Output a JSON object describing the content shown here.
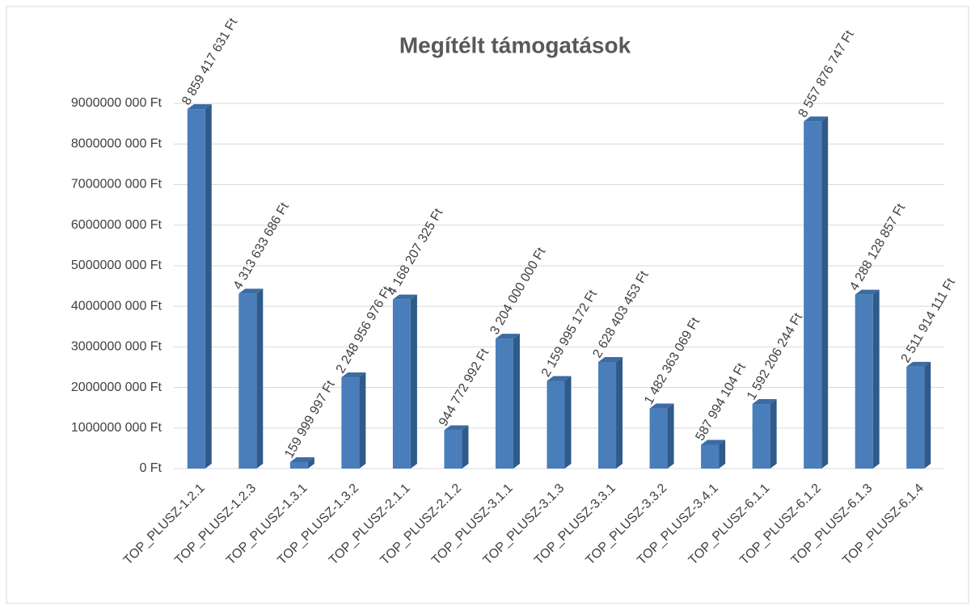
{
  "chart_data": {
    "type": "bar3d",
    "title": "Megítélt támogatások",
    "categories": [
      "TOP_PLUSZ-1.2.1",
      "TOP_PLUSZ-1.2.3",
      "TOP_PLUSZ-1.3.1",
      "TOP_PLUSZ-1.3.2",
      "TOP_PLUSZ-2.1.1",
      "TOP_PLUSZ-2.1.2",
      "TOP_PLUSZ-3.1.1",
      "TOP_PLUSZ-3.1.3",
      "TOP_PLUSZ-3.3.1",
      "TOP_PLUSZ-3.3.2",
      "TOP_PLUSZ-3.4.1",
      "TOP_PLUSZ-6.1.1",
      "TOP_PLUSZ-6.1.2",
      "TOP_PLUSZ-6.1.3",
      "TOP_PLUSZ-6.1.4"
    ],
    "values": [
      8859417631,
      4313633686,
      159999997,
      2248956976,
      4168207325,
      944772992,
      3204000000,
      2159995172,
      2628403453,
      1482363069,
      587994104,
      1592206244,
      8557876747,
      4288128857,
      2511914111
    ],
    "value_labels": [
      "8 859 417 631 Ft",
      "4 313 633 686 Ft",
      "159 999 997 Ft",
      "2 248 956 976 Ft",
      "4 168 207 325 Ft",
      "944 772 992 Ft",
      "3 204 000 000 Ft",
      "2 159 995 172 Ft",
      "2 628 403 453 Ft",
      "1 482 363 069 Ft",
      "587 994 104 Ft",
      "1 592 206 244 Ft",
      "8 557 876 747 Ft",
      "4 288 128 857 Ft",
      "2 511 914 111 Ft"
    ],
    "color": "#4a7ebb",
    "ylim": [
      0,
      9000000000
    ],
    "yticks": [
      {
        "value": 0,
        "label": "0 Ft"
      },
      {
        "value": 1000000000,
        "label": "1000000 000 Ft"
      },
      {
        "value": 2000000000,
        "label": "2000000 000 Ft"
      },
      {
        "value": 3000000000,
        "label": "3000000 000 Ft"
      },
      {
        "value": 4000000000,
        "label": "4000000 000 Ft"
      },
      {
        "value": 5000000000,
        "label": "5000000 000 Ft"
      },
      {
        "value": 6000000000,
        "label": "6000000 000 Ft"
      },
      {
        "value": 7000000000,
        "label": "7000000 000 Ft"
      },
      {
        "value": 8000000000,
        "label": "8000000 000 Ft"
      },
      {
        "value": 9000000000,
        "label": "9000000 000 Ft"
      }
    ],
    "grid": true
  }
}
